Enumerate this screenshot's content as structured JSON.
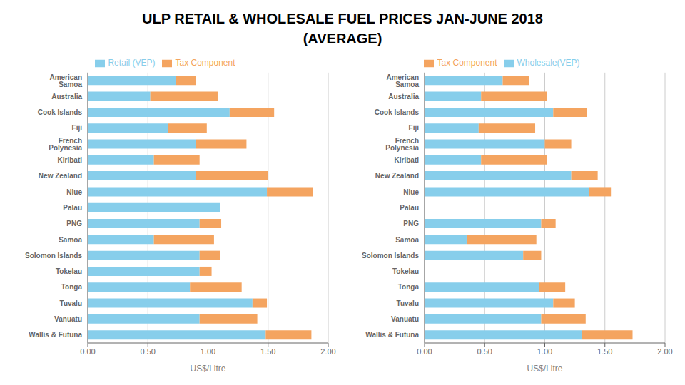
{
  "chart_data": [
    {
      "type": "bar",
      "title": "ULP RETAIL & WHOLESALE FUEL PRICES JAN-JUNE 2018",
      "subtitle": "(AVERAGE)",
      "orientation": "horizontal",
      "stacked": true,
      "grid": true,
      "legend": "top",
      "categories": [
        "Wallis & Futuna",
        "Vanuatu",
        "Tuvalu",
        "Tonga",
        "Tokelau",
        "Solomon Islands",
        "Samoa",
        "PNG",
        "Palau",
        "Niue",
        "New Zealand",
        "Kiribati",
        "French Polynesia",
        "Fiji",
        "Cook Islands",
        "Australia",
        "American Samoa"
      ],
      "series": [
        {
          "name": "Retail (VEP)",
          "color": "#87CEEB",
          "values": [
            1.48,
            0.93,
            1.37,
            0.85,
            0.93,
            0.93,
            0.55,
            0.93,
            1.1,
            1.49,
            0.9,
            0.55,
            0.9,
            0.67,
            1.18,
            0.52,
            0.73
          ]
        },
        {
          "name": "Tax Component",
          "color": "#F4A460",
          "values": [
            0.38,
            0.48,
            0.12,
            0.43,
            0.1,
            0.17,
            0.5,
            0.18,
            0.0,
            0.38,
            0.6,
            0.38,
            0.42,
            0.32,
            0.37,
            0.56,
            0.17
          ]
        }
      ],
      "xlabel": "US$/Litre",
      "xlim": [
        0,
        2.0
      ],
      "xticks": [
        {
          "value": 0,
          "label": "0.00"
        },
        {
          "value": 0.5,
          "label": "0.50"
        },
        {
          "value": 1.0,
          "label": "1.00"
        },
        {
          "value": 1.5,
          "label": "1.50"
        },
        {
          "value": 2.0,
          "label": "2.00"
        }
      ]
    },
    {
      "type": "bar",
      "orientation": "horizontal",
      "stacked": true,
      "grid": true,
      "legend": "top",
      "categories": [
        "Wallis & Futuna",
        "Vanuatu",
        "Tuvalu",
        "Tonga",
        "Tokelau",
        "Solomon Islands",
        "Samoa",
        "PNG",
        "Palau",
        "Niue",
        "New Zealand",
        "Kiribati",
        "French Polynesia",
        "Fiji",
        "Cook Islands",
        "Australia",
        "American Samoa"
      ],
      "series": [
        {
          "name": "Wholesale(VEP)",
          "color": "#87CEEB",
          "values": [
            1.31,
            0.97,
            1.07,
            0.95,
            0.0,
            0.82,
            0.35,
            0.97,
            0.0,
            1.37,
            1.22,
            0.47,
            1.0,
            0.45,
            1.07,
            0.47,
            0.65
          ]
        },
        {
          "name": "Tax Component",
          "color": "#F4A460",
          "values": [
            0.42,
            0.37,
            0.18,
            0.22,
            0.0,
            0.15,
            0.58,
            0.12,
            0.0,
            0.18,
            0.22,
            0.55,
            0.22,
            0.47,
            0.28,
            0.55,
            0.22
          ]
        }
      ],
      "xlabel": "US$/Litre",
      "xlim": [
        0,
        2.0
      ],
      "xticks": [
        {
          "value": 0,
          "label": "0.00"
        },
        {
          "value": 0.5,
          "label": "0.50"
        },
        {
          "value": 1.0,
          "label": "1.00"
        },
        {
          "value": 1.5,
          "label": "1.50"
        },
        {
          "value": 2.0,
          "label": "2.00"
        }
      ]
    }
  ]
}
